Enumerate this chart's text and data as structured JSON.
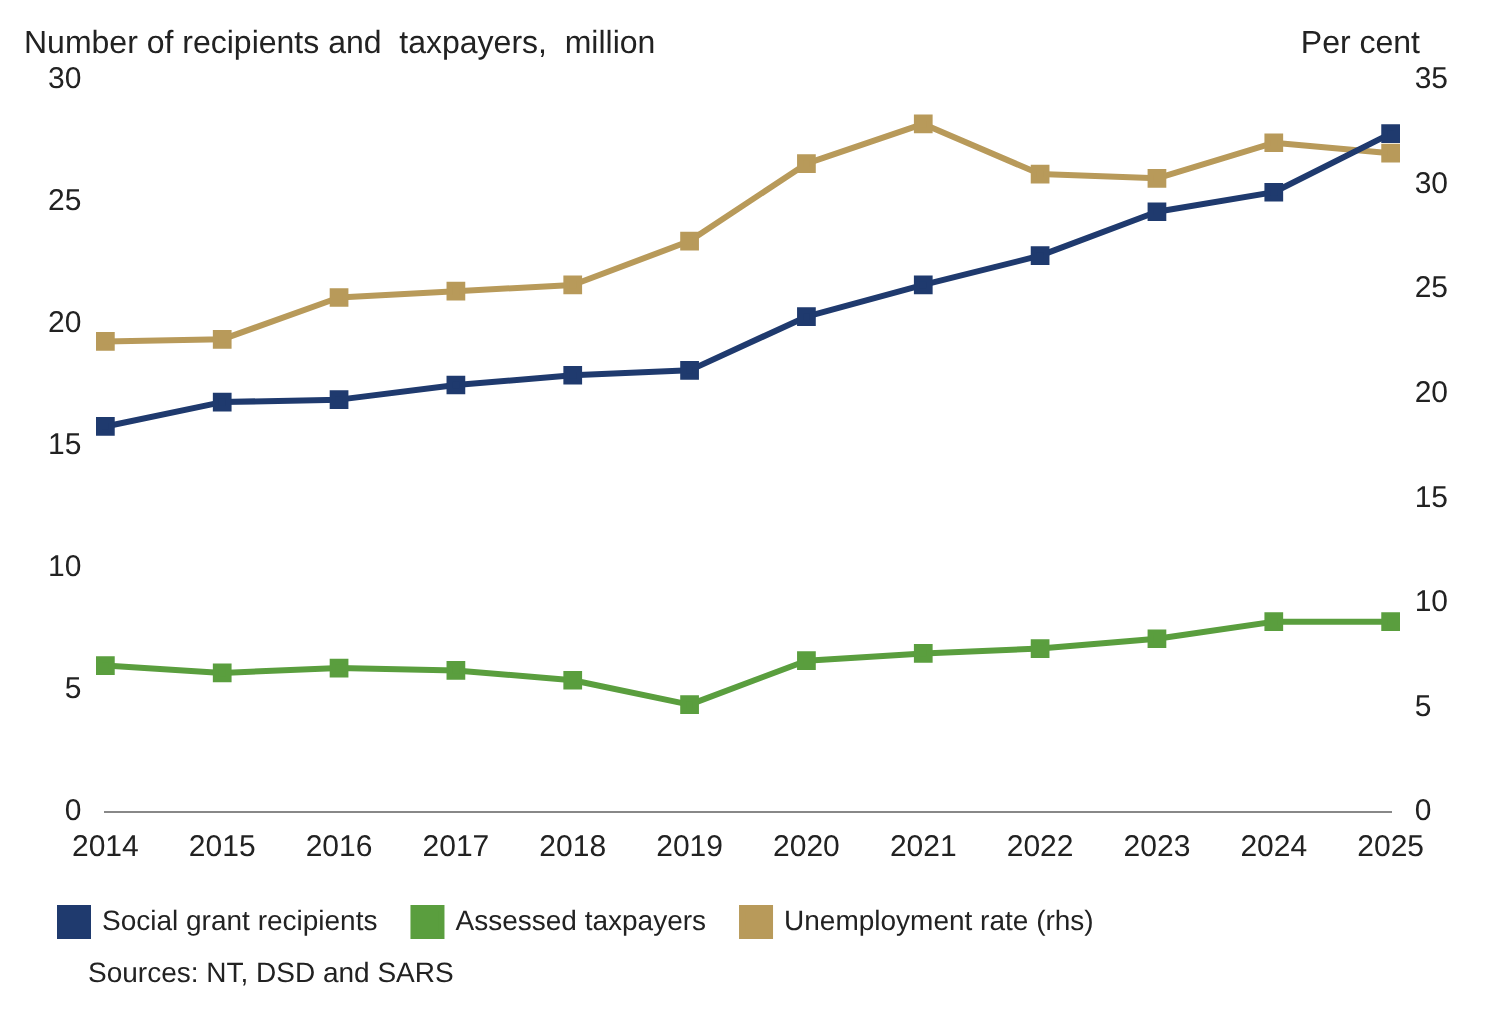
{
  "chart_data": {
    "type": "line",
    "ylabel": "Number of recipients and  taxpayers,  million",
    "y2label": "Per cent",
    "categories": [
      "2014",
      "2015",
      "2016",
      "2017",
      "2018",
      "2019",
      "2020",
      "2021",
      "2022",
      "2023",
      "2024",
      "2025"
    ],
    "series": [
      {
        "name": "Social grant recipients",
        "color": "#1f3a6e",
        "values": [
          15.8,
          16.8,
          16.9,
          17.5,
          17.9,
          18.1,
          20.3,
          21.6,
          22.8,
          24.6,
          25.4,
          27.8
        ]
      },
      {
        "name": "Assessed taxpayers",
        "color": "#5a9e3e",
        "values": [
          6.0,
          5.7,
          5.9,
          5.8,
          5.4,
          4.4,
          6.2,
          6.5,
          6.7,
          7.1,
          7.8,
          7.8
        ]
      },
      {
        "name": "Unemployment rate (rhs)",
        "color": "#b89a5a",
        "axis": "y2",
        "values": [
          22.5,
          22.6,
          24.6,
          24.9,
          25.2,
          27.3,
          31.0,
          32.9,
          30.5,
          30.3,
          32.0,
          31.5
        ]
      }
    ],
    "ylim": [
      0,
      30
    ],
    "yticks": [
      0,
      5,
      10,
      15,
      20,
      25,
      30
    ],
    "y2lim": [
      0,
      35
    ],
    "y2ticks": [
      0,
      5,
      10,
      15,
      20,
      25,
      30,
      35
    ],
    "grid": false,
    "legend": "bottom",
    "marker": "square",
    "line_style": "solid",
    "annotations": [
      "Sources: NT, DSD and SARS"
    ]
  }
}
